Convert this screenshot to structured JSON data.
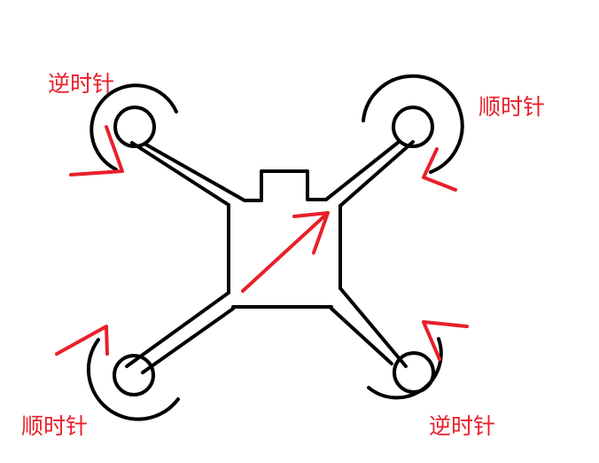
{
  "labels": {
    "top_left": "逆时针",
    "top_right": "顺时针",
    "bottom_left": "顺时针",
    "bottom_right": "逆时针"
  },
  "colors": {
    "background": "#ffffff",
    "frame": "#000000",
    "arrow": "#e8202a"
  }
}
